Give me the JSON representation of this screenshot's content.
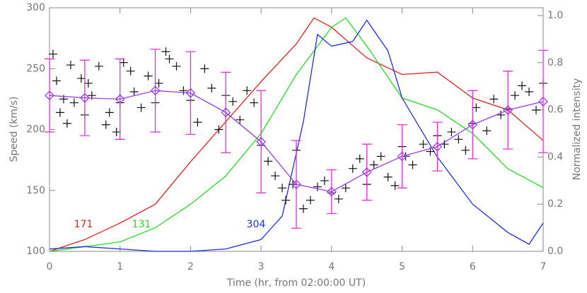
{
  "chart_data": {
    "type": "combo",
    "xlabel": "Time (hr, from 02:00:00 UT)",
    "ylabel": "Speed (km/s)",
    "y2label": "Normalized intensity",
    "xlim": [
      0,
      7
    ],
    "xticks": [
      0,
      1,
      2,
      3,
      4,
      5,
      6,
      7
    ],
    "ylim": [
      100,
      300
    ],
    "yticks": [
      100,
      150,
      200,
      250,
      300
    ],
    "y2lim": [
      0,
      1.033
    ],
    "y2ticks": [
      {
        "value": 0,
        "label": "0.0"
      },
      {
        "value": 0.2,
        "label": "0.2"
      },
      {
        "value": 0.4,
        "label": "0.4"
      },
      {
        "value": 0.6,
        "label": "0.6"
      },
      {
        "value": 0.8,
        "label": "0.8"
      },
      {
        "value": 1,
        "label": "1.0"
      }
    ],
    "series": [
      {
        "name": "171",
        "type": "line",
        "axis": "y2",
        "color": "#e8201c",
        "x": [
          0,
          0.5,
          1,
          1.5,
          2,
          2.5,
          3,
          3.5,
          3.75,
          4,
          4.5,
          5,
          5.5,
          6,
          6.5,
          7
        ],
        "values": [
          0.0,
          0.05,
          0.12,
          0.2,
          0.38,
          0.55,
          0.72,
          0.88,
          0.99,
          0.95,
          0.82,
          0.75,
          0.76,
          0.65,
          0.6,
          0.47
        ]
      },
      {
        "name": "131",
        "type": "line",
        "axis": "y2",
        "color": "#22dd22",
        "x": [
          0,
          0.5,
          1,
          1.5,
          2,
          2.5,
          3,
          3.5,
          4,
          4.2,
          4.5,
          5,
          5.5,
          6,
          6.5,
          7
        ],
        "values": [
          0.0,
          0.02,
          0.04,
          0.1,
          0.2,
          0.32,
          0.5,
          0.75,
          0.95,
          0.99,
          0.87,
          0.65,
          0.6,
          0.5,
          0.35,
          0.27
        ]
      },
      {
        "name": "304",
        "type": "line",
        "axis": "y2",
        "color": "#1c2ee0",
        "x": [
          0,
          0.5,
          1,
          1.5,
          2,
          2.5,
          3,
          3.3,
          3.6,
          3.8,
          4,
          4.3,
          4.5,
          4.8,
          5,
          5.5,
          6,
          6.5,
          6.8,
          7
        ],
        "values": [
          0.01,
          0.02,
          0.01,
          0.0,
          0.0,
          0.01,
          0.05,
          0.15,
          0.55,
          0.92,
          0.87,
          0.89,
          0.98,
          0.85,
          0.65,
          0.4,
          0.2,
          0.08,
          0.03,
          0.12
        ]
      },
      {
        "type": "scatter",
        "color": "#111111",
        "x": [
          0.05,
          0.1,
          0.15,
          0.2,
          0.25,
          0.3,
          0.35,
          0.45,
          0.5,
          0.55,
          0.6,
          0.7,
          0.8,
          0.85,
          0.95,
          1.0,
          1.05,
          1.15,
          1.2,
          1.3,
          1.4,
          1.5,
          1.55,
          1.65,
          1.7,
          1.8,
          1.9,
          2.0,
          2.1,
          2.2,
          2.3,
          2.4,
          2.5,
          2.6,
          2.7,
          2.8,
          2.9,
          3.0,
          3.1,
          3.2,
          3.3,
          3.35,
          3.45,
          3.5,
          3.6,
          3.7,
          3.8,
          3.9,
          4.0,
          4.1,
          4.2,
          4.3,
          4.4,
          4.5,
          4.6,
          4.7,
          4.8,
          4.9,
          5.0,
          5.05,
          5.15,
          5.3,
          5.4,
          5.5,
          5.6,
          5.7,
          5.8,
          5.9,
          6.0,
          6.05,
          6.2,
          6.3,
          6.4,
          6.5,
          6.6,
          6.7,
          6.8,
          6.9,
          7.0
        ],
        "values": [
          262,
          240,
          214,
          225,
          205,
          253,
          222,
          242,
          212,
          238,
          228,
          252,
          204,
          214,
          198,
          222,
          255,
          248,
          231,
          218,
          244,
          222,
          238,
          264,
          258,
          252,
          232,
          224,
          206,
          250,
          234,
          200,
          228,
          223,
          208,
          232,
          222,
          187,
          174,
          162,
          152,
          142,
          155,
          183,
          135,
          142,
          153,
          158,
          148,
          143,
          152,
          168,
          176,
          155,
          171,
          178,
          161,
          154,
          186,
          178,
          171,
          188,
          182,
          195,
          188,
          198,
          192,
          183,
          205,
          218,
          199,
          225,
          212,
          217,
          228,
          236,
          231,
          216,
          238
        ]
      },
      {
        "type": "mean",
        "color": "#9a3ce8",
        "error_color": "#e830d8",
        "x": [
          0,
          0.5,
          1,
          1.5,
          2,
          2.5,
          3,
          3.5,
          4,
          4.5,
          5,
          5.5,
          6,
          6.5,
          7
        ],
        "values": [
          228,
          226,
          225,
          232,
          230,
          214,
          190,
          155,
          149,
          165,
          178,
          186,
          204,
          216,
          223
        ],
        "errors": [
          30,
          31,
          33,
          34,
          34,
          33,
          42,
          36,
          18,
          23,
          26,
          20,
          28,
          32,
          42
        ]
      }
    ]
  }
}
